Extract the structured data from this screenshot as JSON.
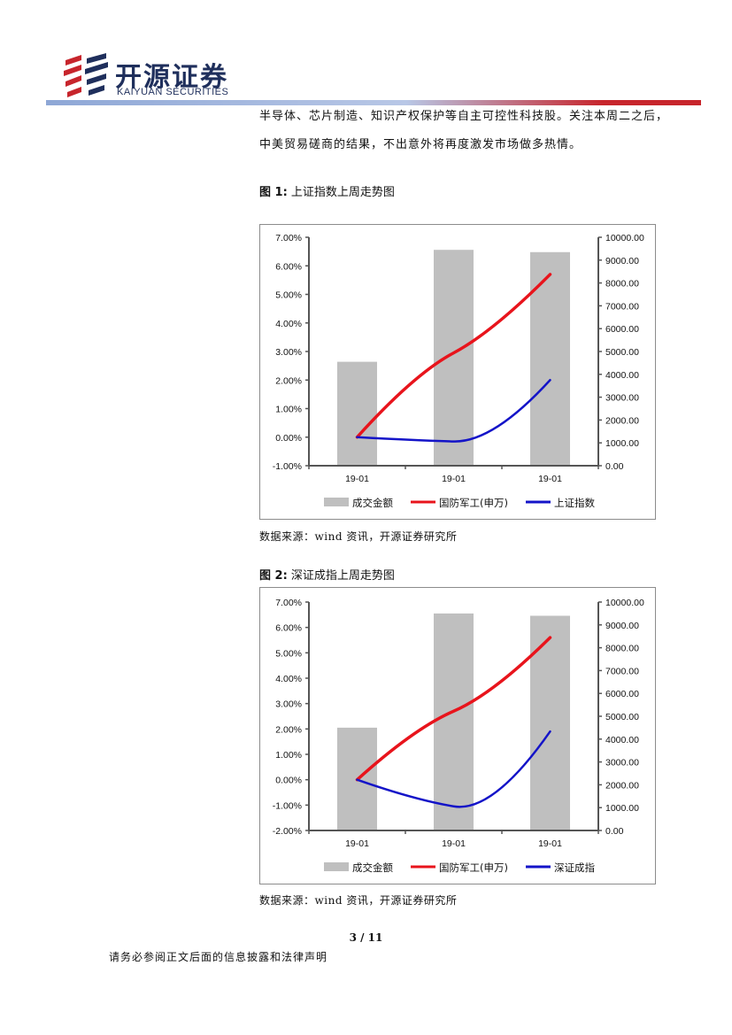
{
  "header": {
    "logo_cn": "开源证券",
    "logo_en": "KAIYUAN SECURITIES",
    "colors": {
      "brand_red": "#c7252c",
      "brand_navy": "#1f2f5c",
      "rule_blue": "#8ea7d6"
    }
  },
  "body": {
    "lines": [
      "半导体、芯片制造、知识产权保护等自主可控性科技股。关注本周二之后，",
      "中美贸易磋商的结果，不出意外将再度激发市场做多热情。"
    ]
  },
  "figures": [
    {
      "label": "图 1:",
      "title": "上证指数上周走势图",
      "source": "数据来源：wind 资讯，开源证券研究所"
    },
    {
      "label": "图 2:",
      "title": "深证成指上周走势图",
      "source": "数据来源：wind 资讯，开源证券研究所"
    }
  ],
  "chart_data": [
    {
      "type": "bar+line",
      "categories": [
        "19-01",
        "19-01",
        "19-01"
      ],
      "y_left": {
        "ticks": [
          "7.00%",
          "6.00%",
          "5.00%",
          "4.00%",
          "3.00%",
          "2.00%",
          "1.00%",
          "0.00%",
          "-1.00%"
        ],
        "range": [
          -1,
          7
        ]
      },
      "y_right": {
        "ticks": [
          "10000.00",
          "9000.00",
          "8000.00",
          "7000.00",
          "6000.00",
          "5000.00",
          "4000.00",
          "3000.00",
          "2000.00",
          "1000.00",
          "0.00"
        ],
        "range": [
          0,
          10000
        ]
      },
      "series": [
        {
          "name": "成交金额",
          "kind": "bar",
          "axis": "right",
          "color": "#bfbfbf",
          "values": [
            4550,
            9450,
            9350
          ]
        },
        {
          "name": "国防军工(申万)",
          "kind": "line",
          "axis": "left",
          "color": "#e8141c",
          "values": [
            0.0,
            3.0,
            5.7
          ],
          "curve_mid": 2.95
        },
        {
          "name": "上证指数",
          "kind": "line",
          "axis": "left",
          "color": "#1414c8",
          "values": [
            0.0,
            0.0,
            2.0
          ],
          "curve_mid": -0.15
        }
      ],
      "legend_position": "bottom"
    },
    {
      "type": "bar+line",
      "categories": [
        "19-01",
        "19-01",
        "19-01"
      ],
      "y_left": {
        "ticks": [
          "7.00%",
          "6.00%",
          "5.00%",
          "4.00%",
          "3.00%",
          "2.00%",
          "1.00%",
          "0.00%",
          "-1.00%",
          "-2.00%"
        ],
        "range": [
          -2,
          7
        ]
      },
      "y_right": {
        "ticks": [
          "10000.00",
          "9000.00",
          "8000.00",
          "7000.00",
          "6000.00",
          "5000.00",
          "4000.00",
          "3000.00",
          "2000.00",
          "1000.00",
          "0.00"
        ],
        "range": [
          0,
          10000
        ]
      },
      "series": [
        {
          "name": "成交金额",
          "kind": "bar",
          "axis": "right",
          "color": "#bfbfbf",
          "values": [
            4500,
            9500,
            9400
          ]
        },
        {
          "name": "国防军工(申万)",
          "kind": "line",
          "axis": "left",
          "color": "#e8141c",
          "values": [
            0.0,
            2.8,
            5.6
          ],
          "curve_mid": 2.7
        },
        {
          "name": "深证成指",
          "kind": "line",
          "axis": "left",
          "color": "#1414c8",
          "values": [
            0.0,
            -0.9,
            1.9
          ],
          "curve_mid": -1.05
        }
      ],
      "legend_position": "bottom"
    }
  ],
  "footer": {
    "page": "3 / 11",
    "disclaimer": "请务必参阅正文后面的信息披露和法律声明"
  }
}
